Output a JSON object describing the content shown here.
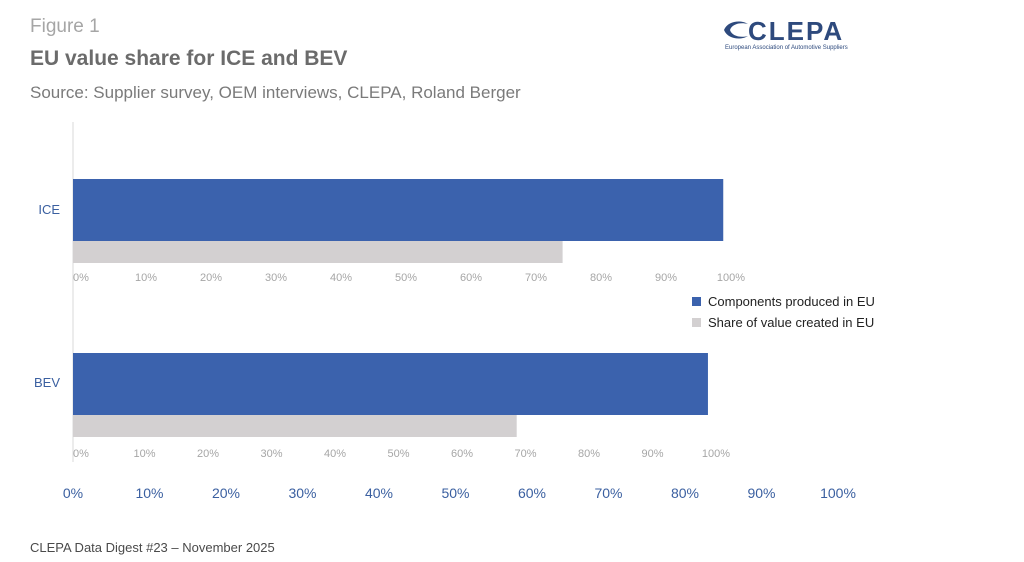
{
  "figure_label": "Figure 1",
  "title": "EU value share for ICE and BEV",
  "subtitle": "Source: Supplier survey, OEM interviews, CLEPA, Roland Berger",
  "logo": {
    "name": "CLEPA",
    "tagline": "European Association of Automotive Suppliers"
  },
  "footer": "CLEPA Data Digest #23 – November 2025",
  "chart_data": {
    "type": "bar",
    "orientation": "horizontal",
    "categories": [
      "ICE",
      "BEV"
    ],
    "series": [
      {
        "name": "Components produced in EU",
        "values": [
          85,
          83
        ],
        "color": "#3b62ad"
      },
      {
        "name": "Share of value created in EU",
        "values": [
          64,
          58
        ],
        "color": "#d3d0d1"
      }
    ],
    "xlim": [
      0,
      100
    ],
    "ticks": [
      "0%",
      "10%",
      "20%",
      "30%",
      "40%",
      "50%",
      "60%",
      "70%",
      "80%",
      "90%",
      "100%"
    ],
    "legend_position": "right",
    "grid": false
  }
}
